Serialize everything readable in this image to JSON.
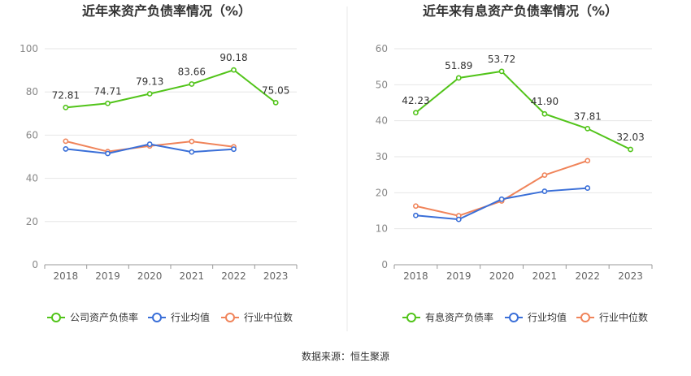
{
  "charts": [
    {
      "title": "近年来资产负债率情况（%）",
      "chart_data": {
        "type": "line",
        "title": "近年来资产负债率情况（%）",
        "categories": [
          "2018",
          "2019",
          "2020",
          "2021",
          "2022",
          "2023"
        ],
        "ylim": [
          0,
          100
        ],
        "yticks": [
          "0",
          "20",
          "40",
          "60",
          "80",
          "100"
        ],
        "grid": true,
        "legend_position": "bottom",
        "series": [
          {
            "name": "公司资产负债率",
            "values": [
              72.81,
              74.71,
              79.13,
              83.66,
              90.18,
              75.05
            ],
            "labels": [
              "72.81",
              "74.71",
              "79.13",
              "83.66",
              "90.18",
              "75.05"
            ],
            "color": "#52c41a"
          },
          {
            "name": "行业均值",
            "values": [
              53.6,
              51.5,
              55.8,
              52.2,
              53.5,
              null
            ],
            "color": "#3a6fd8"
          },
          {
            "name": "行业中位数",
            "values": [
              57.2,
              52.4,
              55.0,
              57.1,
              54.6,
              null
            ],
            "color": "#f0845a"
          }
        ]
      }
    },
    {
      "title": "近年来有息资产负债率情况（%）",
      "chart_data": {
        "type": "line",
        "title": "近年来有息资产负债率情况（%）",
        "categories": [
          "2018",
          "2019",
          "2020",
          "2021",
          "2022",
          "2023"
        ],
        "ylim": [
          0,
          60
        ],
        "yticks": [
          "0",
          "10",
          "20",
          "30",
          "40",
          "50",
          "60"
        ],
        "grid": true,
        "legend_position": "bottom",
        "series": [
          {
            "name": "有息资产负债率",
            "values": [
              42.23,
              51.89,
              53.72,
              41.9,
              37.81,
              32.03
            ],
            "labels": [
              "42.23",
              "51.89",
              "53.72",
              "41.90",
              "37.81",
              "32.03"
            ],
            "color": "#52c41a"
          },
          {
            "name": "行业均值",
            "values": [
              13.7,
              12.6,
              18.2,
              20.4,
              21.3,
              null
            ],
            "color": "#3a6fd8"
          },
          {
            "name": "行业中位数",
            "values": [
              16.3,
              13.6,
              17.7,
              24.9,
              28.9,
              null
            ],
            "color": "#f0845a"
          }
        ]
      }
    }
  ],
  "footer": {
    "source": "数据来源：恒生聚源"
  }
}
